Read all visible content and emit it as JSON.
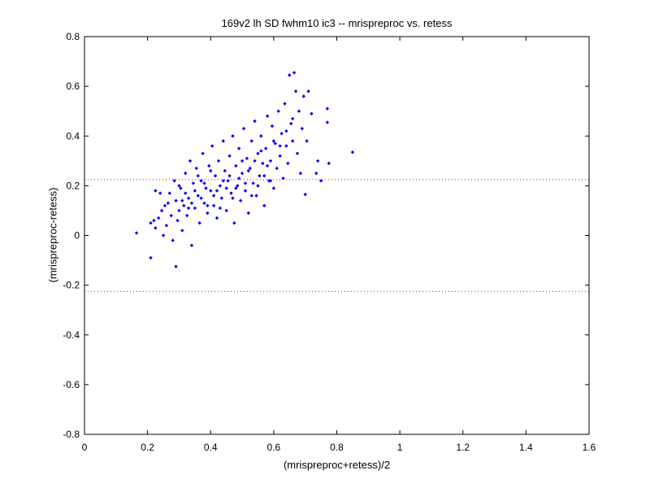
{
  "chart_data": {
    "type": "scatter",
    "title": "169v2 lh SD fwhm10 ic3 -- mrispreproc vs. retess",
    "xlabel": "(mrispreproc+retess)/2",
    "ylabel": "(mrispreproc-retess)",
    "xlim": [
      0,
      1.6
    ],
    "ylim": [
      -0.8,
      0.8
    ],
    "xticks": [
      "0",
      "0.2",
      "0.4",
      "0.6",
      "0.8",
      "1",
      "1.2",
      "1.4",
      "1.6"
    ],
    "yticks": [
      "-0.8",
      "-0.6",
      "-0.4",
      "-0.2",
      "0",
      "0.2",
      "0.4",
      "0.6",
      "0.8"
    ],
    "grid": false,
    "legend": "none",
    "marker_color": "#0000ff",
    "reference_lines": [
      {
        "y": 0.225,
        "style": "dotted",
        "color": "#ff0000"
      },
      {
        "y": -0.225,
        "style": "dotted",
        "color": "#ff0000"
      }
    ],
    "points": [
      [
        0.165,
        0.01
      ],
      [
        0.21,
        -0.09
      ],
      [
        0.21,
        0.05
      ],
      [
        0.22,
        0.06
      ],
      [
        0.225,
        0.03
      ],
      [
        0.225,
        0.18
      ],
      [
        0.235,
        0.07
      ],
      [
        0.24,
        0.17
      ],
      [
        0.245,
        0.1
      ],
      [
        0.25,
        0.0
      ],
      [
        0.255,
        0.12
      ],
      [
        0.26,
        0.04
      ],
      [
        0.265,
        0.13
      ],
      [
        0.27,
        0.17
      ],
      [
        0.275,
        0.08
      ],
      [
        0.28,
        -0.02
      ],
      [
        0.285,
        0.22
      ],
      [
        0.29,
        -0.125
      ],
      [
        0.29,
        0.14
      ],
      [
        0.295,
        0.06
      ],
      [
        0.3,
        0.1
      ],
      [
        0.305,
        0.19
      ],
      [
        0.31,
        0.02
      ],
      [
        0.315,
        0.12
      ],
      [
        0.32,
        0.25
      ],
      [
        0.325,
        0.08
      ],
      [
        0.33,
        0.15
      ],
      [
        0.335,
        0.3
      ],
      [
        0.34,
        -0.04
      ],
      [
        0.345,
        0.21
      ],
      [
        0.35,
        0.11
      ],
      [
        0.355,
        0.27
      ],
      [
        0.36,
        0.16
      ],
      [
        0.365,
        0.05
      ],
      [
        0.37,
        0.22
      ],
      [
        0.375,
        0.33
      ],
      [
        0.38,
        0.13
      ],
      [
        0.385,
        0.19
      ],
      [
        0.39,
        0.09
      ],
      [
        0.395,
        0.28
      ],
      [
        0.4,
        0.18
      ],
      [
        0.405,
        0.36
      ],
      [
        0.41,
        0.12
      ],
      [
        0.415,
        0.24
      ],
      [
        0.42,
        0.07
      ],
      [
        0.425,
        0.3
      ],
      [
        0.43,
        0.2
      ],
      [
        0.435,
        0.15
      ],
      [
        0.44,
        0.38
      ],
      [
        0.445,
        0.26
      ],
      [
        0.45,
        0.1
      ],
      [
        0.455,
        0.22
      ],
      [
        0.46,
        0.32
      ],
      [
        0.465,
        0.17
      ],
      [
        0.47,
        0.4
      ],
      [
        0.475,
        0.05
      ],
      [
        0.48,
        0.28
      ],
      [
        0.485,
        0.2
      ],
      [
        0.49,
        0.35
      ],
      [
        0.495,
        0.14
      ],
      [
        0.5,
        0.25
      ],
      [
        0.505,
        0.43
      ],
      [
        0.51,
        0.18
      ],
      [
        0.515,
        0.31
      ],
      [
        0.52,
        0.09
      ],
      [
        0.525,
        0.27
      ],
      [
        0.53,
        0.38
      ],
      [
        0.535,
        0.21
      ],
      [
        0.54,
        0.46
      ],
      [
        0.545,
        0.16
      ],
      [
        0.55,
        0.33
      ],
      [
        0.555,
        0.24
      ],
      [
        0.56,
        0.4
      ],
      [
        0.565,
        0.29
      ],
      [
        0.57,
        0.12
      ],
      [
        0.575,
        0.35
      ],
      [
        0.58,
        0.48
      ],
      [
        0.585,
        0.22
      ],
      [
        0.59,
        0.3
      ],
      [
        0.595,
        0.44
      ],
      [
        0.6,
        0.19
      ],
      [
        0.605,
        0.37
      ],
      [
        0.61,
        0.27
      ],
      [
        0.615,
        0.5
      ],
      [
        0.62,
        0.32
      ],
      [
        0.625,
        0.41
      ],
      [
        0.63,
        0.23
      ],
      [
        0.635,
        0.53
      ],
      [
        0.64,
        0.36
      ],
      [
        0.645,
        0.29
      ],
      [
        0.65,
        0.645
      ],
      [
        0.655,
        0.45
      ],
      [
        0.66,
        0.38
      ],
      [
        0.665,
        0.655
      ],
      [
        0.67,
        0.58
      ],
      [
        0.675,
        0.33
      ],
      [
        0.68,
        0.5
      ],
      [
        0.685,
        0.25
      ],
      [
        0.69,
        0.43
      ],
      [
        0.695,
        0.56
      ],
      [
        0.7,
        0.165
      ],
      [
        0.705,
        0.38
      ],
      [
        0.71,
        0.58
      ],
      [
        0.72,
        0.49
      ],
      [
        0.735,
        0.25
      ],
      [
        0.74,
        0.3
      ],
      [
        0.75,
        0.22
      ],
      [
        0.77,
        0.51
      ],
      [
        0.77,
        0.455
      ],
      [
        0.775,
        0.29
      ],
      [
        0.85,
        0.335
      ],
      [
        0.3,
        0.2
      ],
      [
        0.32,
        0.17
      ],
      [
        0.34,
        0.13
      ],
      [
        0.36,
        0.24
      ],
      [
        0.38,
        0.21
      ],
      [
        0.4,
        0.26
      ],
      [
        0.42,
        0.18
      ],
      [
        0.44,
        0.22
      ],
      [
        0.46,
        0.24
      ],
      [
        0.48,
        0.19
      ],
      [
        0.5,
        0.3
      ],
      [
        0.52,
        0.26
      ],
      [
        0.54,
        0.3
      ],
      [
        0.56,
        0.34
      ],
      [
        0.58,
        0.28
      ],
      [
        0.6,
        0.38
      ],
      [
        0.62,
        0.36
      ],
      [
        0.64,
        0.42
      ],
      [
        0.66,
        0.47
      ],
      [
        0.31,
        0.14
      ],
      [
        0.33,
        0.11
      ],
      [
        0.35,
        0.18
      ],
      [
        0.37,
        0.15
      ],
      [
        0.39,
        0.12
      ],
      [
        0.41,
        0.16
      ],
      [
        0.43,
        0.11
      ],
      [
        0.45,
        0.19
      ],
      [
        0.47,
        0.15
      ],
      [
        0.49,
        0.23
      ],
      [
        0.51,
        0.21
      ],
      [
        0.53,
        0.16
      ],
      [
        0.55,
        0.2
      ],
      [
        0.57,
        0.24
      ],
      [
        0.59,
        0.22
      ]
    ]
  }
}
